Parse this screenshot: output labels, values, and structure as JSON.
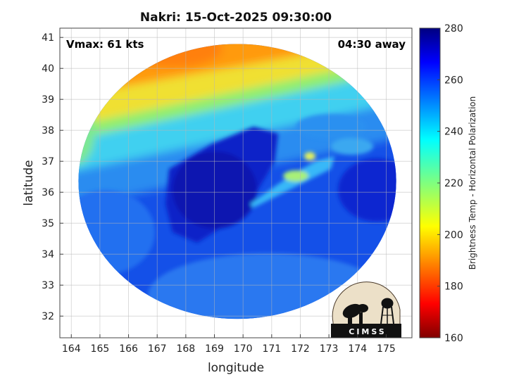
{
  "chart_data": {
    "type": "heatmap",
    "title": "Nakri: 15-Oct-2025 09:30:00",
    "xlabel": "longitude",
    "ylabel": "latitude",
    "xlim": [
      163.6,
      175.9
    ],
    "ylim": [
      31.3,
      41.3
    ],
    "x_ticks": [
      "164",
      "165",
      "166",
      "167",
      "168",
      "169",
      "170",
      "171",
      "172",
      "173",
      "174",
      "175"
    ],
    "y_ticks": [
      "32",
      "33",
      "34",
      "35",
      "36",
      "37",
      "38",
      "39",
      "40",
      "41"
    ],
    "grid": true,
    "annotations": {
      "vmax": "Vmax: 61 kts",
      "time_away": "04:30 away"
    },
    "colorbar": {
      "label": "Brightness Temp - Horizontal Polarization",
      "range": [
        160,
        280
      ],
      "ticks": [
        "280",
        "260",
        "240",
        "220",
        "200",
        "180",
        "160"
      ],
      "colormap": "jet"
    },
    "swath": {
      "center": [
        169.8,
        36.35
      ],
      "radius_deg": 5.55
    },
    "field_features": [
      {
        "kind": "warm-band-north",
        "lon": 168.5,
        "lat": 40.5,
        "tb": 195
      },
      {
        "kind": "cold-core",
        "lon": 169.5,
        "lat": 36.0,
        "tb": 272
      },
      {
        "kind": "rainband",
        "lon": 172.0,
        "lat": 36.6,
        "tb": 225
      },
      {
        "kind": "background-ocean",
        "lon": 171.0,
        "lat": 33.5,
        "tb": 258
      }
    ],
    "value_grid_note": ""
  },
  "logo": {
    "text": "CIMSS"
  }
}
